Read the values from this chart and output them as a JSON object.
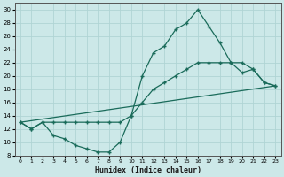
{
  "xlabel": "Humidex (Indice chaleur)",
  "background_color": "#cce8e8",
  "grid_color": "#b0d4d4",
  "line_color": "#1a6b5a",
  "xlim": [
    -0.5,
    23.5
  ],
  "ylim": [
    8,
    31
  ],
  "xticks": [
    0,
    1,
    2,
    3,
    4,
    5,
    6,
    7,
    8,
    9,
    10,
    11,
    12,
    13,
    14,
    15,
    16,
    17,
    18,
    19,
    20,
    21,
    22,
    23
  ],
  "yticks": [
    8,
    10,
    12,
    14,
    16,
    18,
    20,
    22,
    24,
    26,
    28,
    30
  ],
  "curve1_x": [
    0,
    1,
    2,
    3,
    4,
    5,
    6,
    7,
    8,
    9,
    10,
    11,
    12,
    13,
    14,
    15,
    16,
    17,
    18,
    19,
    20,
    21,
    22,
    23
  ],
  "curve1_y": [
    13,
    12,
    13,
    11,
    10.5,
    9.5,
    9,
    8.5,
    8.5,
    10,
    14,
    20,
    23.5,
    24.5,
    27,
    28,
    30,
    27.5,
    25,
    22,
    20.5,
    21,
    19,
    18.5
  ],
  "curve2_x": [
    0,
    1,
    2,
    3,
    4,
    5,
    6,
    7,
    8,
    9,
    10,
    11,
    12,
    13,
    14,
    15,
    16,
    17,
    18,
    19,
    20,
    21,
    22,
    23
  ],
  "curve2_y": [
    13,
    12,
    13,
    13,
    13,
    13,
    13,
    13,
    13,
    13,
    14,
    16,
    18,
    19,
    20,
    21,
    22,
    22,
    22,
    22,
    22,
    21,
    19,
    18.5
  ],
  "curve3_x": [
    0,
    23
  ],
  "curve3_y": [
    13,
    18.5
  ],
  "marker": "+"
}
